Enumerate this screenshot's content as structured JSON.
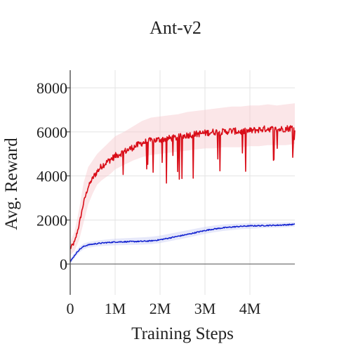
{
  "chart_data": {
    "type": "line",
    "title": "Ant-v2",
    "xlabel": "Training Steps",
    "ylabel": "Avg. Reward",
    "xlim": [
      0,
      5000000
    ],
    "ylim": [
      -1400,
      8800
    ],
    "x_ticks": [
      {
        "value": 0,
        "label": "0"
      },
      {
        "value": 1000000,
        "label": "1M"
      },
      {
        "value": 2000000,
        "label": "2M"
      },
      {
        "value": 3000000,
        "label": "3M"
      },
      {
        "value": 4000000,
        "label": "4M"
      }
    ],
    "y_ticks": [
      {
        "value": 0,
        "label": "0"
      },
      {
        "value": 2000,
        "label": "2000"
      },
      {
        "value": 4000,
        "label": "4000"
      },
      {
        "value": 6000,
        "label": "6000"
      },
      {
        "value": 8000,
        "label": "8000"
      }
    ],
    "grid": true,
    "legend": "none",
    "series": [
      {
        "color": "#d90d18",
        "band_color": "#f7c8cc",
        "x": [
          0,
          100000,
          200000,
          300000,
          400000,
          500000,
          600000,
          700000,
          800000,
          900000,
          1000000,
          1200000,
          1400000,
          1600000,
          1800000,
          2000000,
          2200000,
          2400000,
          2600000,
          2800000,
          3000000,
          3200000,
          3400000,
          3600000,
          3800000,
          4000000,
          4200000,
          4400000,
          4600000,
          4800000,
          5000000
        ],
        "values": [
          700,
          1000,
          1800,
          2800,
          3500,
          3900,
          4200,
          4450,
          4600,
          4750,
          4900,
          5100,
          5300,
          5500,
          5600,
          5650,
          5700,
          5750,
          5850,
          5900,
          5950,
          6000,
          6000,
          6050,
          6000,
          6050,
          6100,
          6150,
          6100,
          6150,
          6200
        ],
        "lower": [
          400,
          600,
          1100,
          1900,
          2700,
          3200,
          3600,
          3800,
          3950,
          4100,
          4300,
          4500,
          4700,
          4850,
          4950,
          5000,
          5050,
          5100,
          5150,
          5200,
          5250,
          5250,
          5300,
          5300,
          5300,
          5350,
          5350,
          5400,
          5400,
          5400,
          5450
        ],
        "upper": [
          1000,
          1500,
          2500,
          3700,
          4400,
          4700,
          5000,
          5200,
          5400,
          5600,
          5800,
          6000,
          6250,
          6500,
          6650,
          6700,
          6750,
          6800,
          6900,
          6950,
          7000,
          7050,
          7100,
          7150,
          7150,
          7200,
          7200,
          7250,
          7200,
          7250,
          7300
        ]
      },
      {
        "color": "#1020d0",
        "band_color": "#c8ccf4",
        "x": [
          0,
          50000,
          100000,
          200000,
          300000,
          400000,
          600000,
          800000,
          1000000,
          1200000,
          1400000,
          1600000,
          1800000,
          2000000,
          2200000,
          2400000,
          2600000,
          2800000,
          3000000,
          3200000,
          3400000,
          3600000,
          3800000,
          4000000,
          4200000,
          4400000,
          4600000,
          4800000,
          5000000
        ],
        "values": [
          100,
          250,
          400,
          650,
          800,
          870,
          930,
          970,
          1000,
          1010,
          1020,
          1030,
          1050,
          1100,
          1180,
          1260,
          1340,
          1430,
          1520,
          1590,
          1640,
          1680,
          1710,
          1730,
          1740,
          1750,
          1760,
          1780,
          1800
        ],
        "lower": [
          0,
          120,
          280,
          520,
          670,
          740,
          800,
          830,
          850,
          860,
          870,
          880,
          900,
          950,
          1030,
          1110,
          1190,
          1280,
          1370,
          1440,
          1500,
          1540,
          1580,
          1600,
          1620,
          1640,
          1650,
          1670,
          1700
        ],
        "upper": [
          200,
          380,
          520,
          780,
          930,
          1000,
          1060,
          1110,
          1150,
          1170,
          1190,
          1210,
          1240,
          1290,
          1370,
          1450,
          1530,
          1610,
          1690,
          1750,
          1790,
          1820,
          1840,
          1860,
          1870,
          1870,
          1880,
          1890,
          1900
        ]
      }
    ]
  }
}
